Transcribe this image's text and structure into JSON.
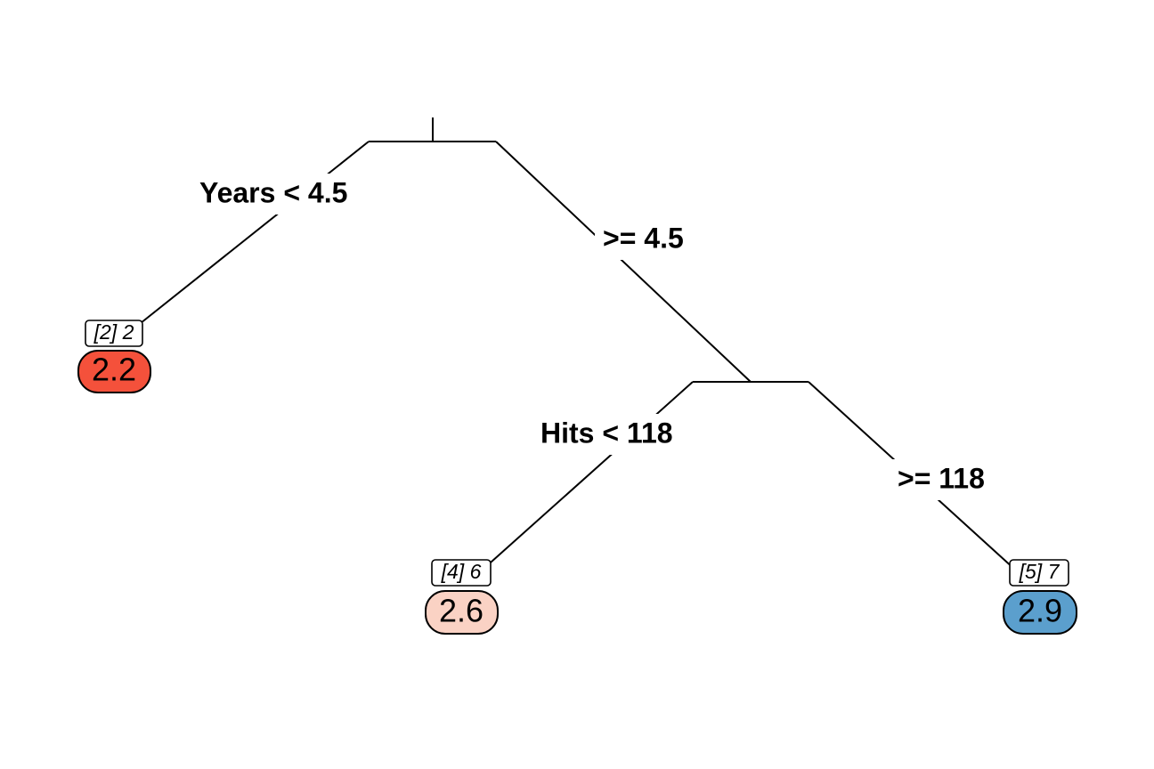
{
  "tree": {
    "colors": {
      "line": "#000000",
      "low": "#f4513b",
      "mid": "#fad2c4",
      "high": "#5b9fcd"
    },
    "splits": {
      "years_left": "Years < 4.5",
      "years_right": ">= 4.5",
      "hits_left": "Hits < 118",
      "hits_right": ">= 118"
    },
    "leaves": [
      {
        "id": "node-2",
        "node_label": "[2] 2",
        "value": "2.2",
        "color": "#f4513b"
      },
      {
        "id": "node-4",
        "node_label": "[4] 6",
        "value": "2.6",
        "color": "#fad2c4"
      },
      {
        "id": "node-5",
        "node_label": "[5] 7",
        "value": "2.9",
        "color": "#5b9fcd"
      }
    ]
  }
}
